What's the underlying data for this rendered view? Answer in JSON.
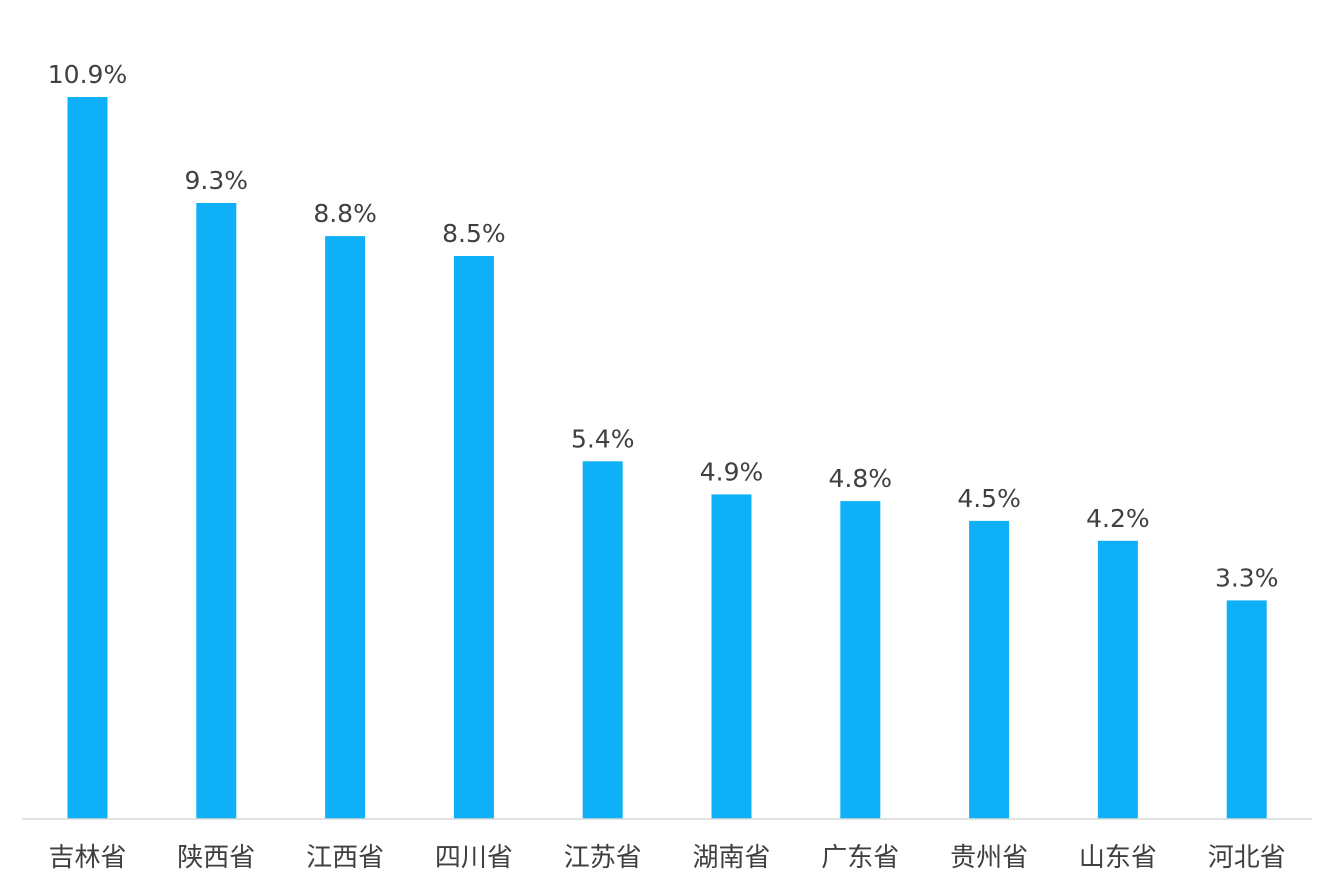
{
  "chart_data": {
    "type": "bar",
    "title": "",
    "xlabel": "",
    "ylabel": "",
    "categories": [
      "吉林省",
      "陕西省",
      "江西省",
      "四川省",
      "江苏省",
      "湖南省",
      "广东省",
      "贵州省",
      "山东省",
      "河北省"
    ],
    "values": [
      10.9,
      9.3,
      8.8,
      8.5,
      5.4,
      4.9,
      4.8,
      4.5,
      4.2,
      3.3
    ],
    "data_labels": [
      "10.9%",
      "9.3%",
      "8.8%",
      "8.5%",
      "5.4%",
      "4.9%",
      "4.8%",
      "4.5%",
      "4.2%",
      "3.3%"
    ],
    "unit": "%",
    "ylim": [
      0,
      10.9
    ],
    "grid": false,
    "legend": "none",
    "bar_color": "#0EB0F8"
  }
}
